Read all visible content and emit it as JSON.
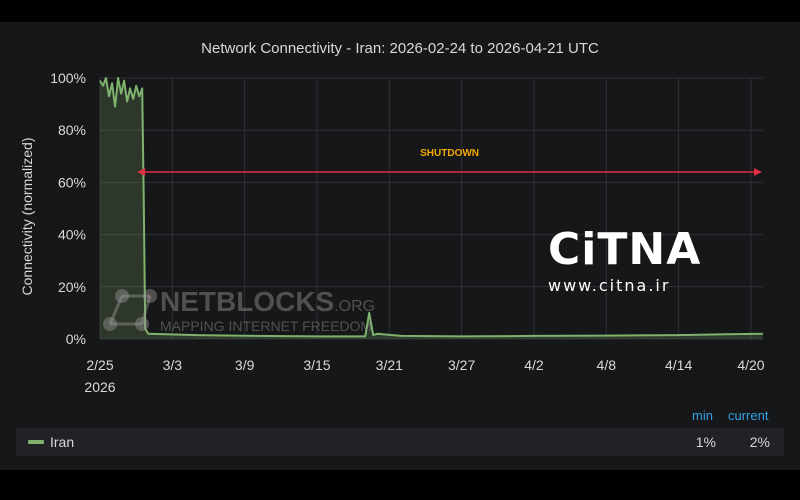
{
  "chart_data": {
    "type": "line",
    "title": "Network Connectivity - Iran: 2026-02-24 to 2026-04-21 UTC",
    "ylabel": "Connectivity (normalized)",
    "xlabel": "",
    "ylim": [
      0,
      100
    ],
    "xlim": [
      "2026-02-25",
      "2026-04-21"
    ],
    "grid": true,
    "y_ticks": [
      "0%",
      "20%",
      "40%",
      "60%",
      "80%",
      "100%"
    ],
    "x_ticks": [
      {
        "date": "2026-02-25",
        "label": "2/25",
        "sub": "2026"
      },
      {
        "date": "2026-03-03",
        "label": "3/3",
        "sub": ""
      },
      {
        "date": "2026-03-09",
        "label": "3/9",
        "sub": ""
      },
      {
        "date": "2026-03-15",
        "label": "3/15",
        "sub": ""
      },
      {
        "date": "2026-03-21",
        "label": "3/21",
        "sub": ""
      },
      {
        "date": "2026-03-27",
        "label": "3/27",
        "sub": ""
      },
      {
        "date": "2026-04-02",
        "label": "4/2",
        "sub": ""
      },
      {
        "date": "2026-04-08",
        "label": "4/8",
        "sub": ""
      },
      {
        "date": "2026-04-14",
        "label": "4/14",
        "sub": ""
      },
      {
        "date": "2026-04-20",
        "label": "4/20",
        "sub": ""
      }
    ],
    "series": [
      {
        "name": "Iran",
        "color": "#7eb26d",
        "points": [
          [
            "2026-02-25T00:00",
            99
          ],
          [
            "2026-02-25T06:00",
            97
          ],
          [
            "2026-02-25T12:00",
            100
          ],
          [
            "2026-02-25T18:00",
            93
          ],
          [
            "2026-02-26T00:00",
            98
          ],
          [
            "2026-02-26T06:00",
            89
          ],
          [
            "2026-02-26T12:00",
            100
          ],
          [
            "2026-02-26T18:00",
            94
          ],
          [
            "2026-02-27T00:00",
            99
          ],
          [
            "2026-02-27T06:00",
            91
          ],
          [
            "2026-02-27T12:00",
            96
          ],
          [
            "2026-02-27T18:00",
            92
          ],
          [
            "2026-02-28T00:00",
            97
          ],
          [
            "2026-02-28T06:00",
            93
          ],
          [
            "2026-02-28T12:00",
            96
          ],
          [
            "2026-02-28T15:00",
            55
          ],
          [
            "2026-02-28T18:00",
            4
          ],
          [
            "2026-03-01T00:00",
            2
          ],
          [
            "2026-03-05T00:00",
            1.5
          ],
          [
            "2026-03-10T00:00",
            1.2
          ],
          [
            "2026-03-15T00:00",
            1
          ],
          [
            "2026-03-19T00:00",
            1
          ],
          [
            "2026-03-19T08:00",
            10
          ],
          [
            "2026-03-19T16:00",
            1.5
          ],
          [
            "2026-03-20T00:00",
            2
          ],
          [
            "2026-03-22T00:00",
            1.2
          ],
          [
            "2026-03-27T00:00",
            1
          ],
          [
            "2026-04-02T00:00",
            1.2
          ],
          [
            "2026-04-08T00:00",
            1.3
          ],
          [
            "2026-04-14T00:00",
            1.5
          ],
          [
            "2026-04-18T00:00",
            1.8
          ],
          [
            "2026-04-21T00:00",
            2
          ]
        ]
      }
    ],
    "annotations": [
      {
        "text": "SHUTDOWN",
        "from": "2026-02-28",
        "to": "2026-04-21",
        "y": 64,
        "color": "#e02f44"
      }
    ]
  },
  "legend": {
    "min_header": "min",
    "current_header": "current",
    "rows": [
      {
        "name": "Iran",
        "min": "1%",
        "current": "2%"
      }
    ]
  },
  "watermarks": {
    "citna_logo": "CiTNA",
    "citna_url": "www.citna.ir",
    "netblocks_name": "NETBLOCKS",
    "netblocks_tld": ".ORG",
    "netblocks_tagline": "MAPPING INTERNET FREEDOM"
  },
  "colors": {
    "panel": "#161719",
    "grid": "#2f3136",
    "text": "#d8d9da",
    "legend_header": "#33a2e5",
    "annotation": "#e02f44",
    "annotation_label": "#f2a800"
  }
}
